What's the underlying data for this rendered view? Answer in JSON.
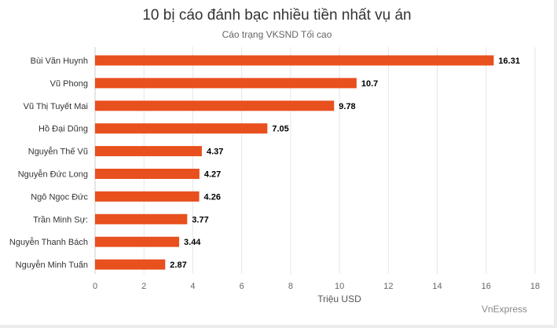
{
  "title": "10 bị cáo đánh bạc nhiều tiền nhất vụ án",
  "subtitle": "Cáo trạng VKSND Tối cao",
  "source_credit": "VnExpress",
  "chart_data": {
    "type": "bar",
    "orientation": "horizontal",
    "title": "10 bị cáo đánh bạc nhiều tiền nhất vụ án",
    "subtitle": "Cáo trạng VKSND Tối cao",
    "xlabel": "Triệu USD",
    "ylabel": "",
    "categories": [
      "Bùi Văn Huynh",
      "Vũ Phong",
      "Vũ Thị Tuyết Mai",
      "Hồ Đại Dũng",
      "Nguyễn Thế Vũ",
      "Nguyễn Đức Long",
      "Ngô Ngọc Đức",
      "Trần Minh Sự:",
      "Nguyễn Thanh Bách",
      "Nguyễn Minh Tuấn"
    ],
    "values": [
      16.31,
      10.7,
      9.78,
      7.05,
      4.37,
      4.27,
      4.26,
      3.77,
      3.44,
      2.87
    ],
    "value_labels": [
      "16.31",
      "10.7",
      "9.78",
      "7.05",
      "4.37",
      "4.27",
      "4.26",
      "3.77",
      "3.44",
      "2.87"
    ],
    "xlim": [
      0,
      18
    ],
    "ticks": [
      0,
      2,
      4,
      6,
      8,
      10,
      12,
      14,
      16,
      18
    ],
    "grid": true,
    "legend": "none",
    "bar_color": "#e8501e"
  }
}
